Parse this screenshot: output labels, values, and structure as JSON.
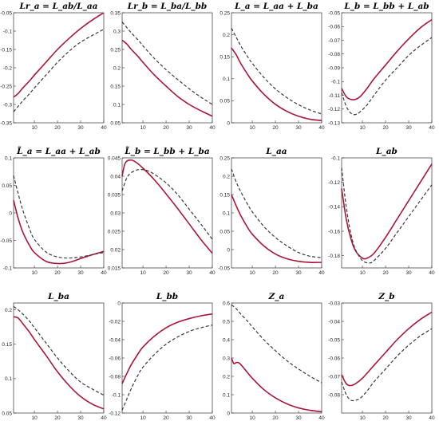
{
  "style": {
    "solid_color": "#a8163a",
    "dashed_color": "#3a3a3a"
  },
  "chart_data": [
    {
      "type": "line",
      "title": "Lr_a = L_ab/L_aa",
      "xlim": [
        1,
        40
      ],
      "ylim": [
        -0.35,
        -0.05
      ],
      "xticks": [
        "10",
        "20",
        "30",
        "40"
      ],
      "xtick_values": [
        10,
        20,
        30,
        40
      ],
      "yticks": [
        "-0.35",
        "-0.3",
        "-0.25",
        "-0.2",
        "-0.15",
        "-0.1",
        "-0.05"
      ],
      "ytick_values": [
        -0.35,
        -0.3,
        -0.25,
        -0.2,
        -0.15,
        -0.1,
        -0.05
      ],
      "series": [
        {
          "style": "solid",
          "x": [
            1,
            3,
            5,
            8,
            10,
            15,
            20,
            25,
            30,
            35,
            40
          ],
          "y": [
            -0.28,
            -0.27,
            -0.255,
            -0.235,
            -0.22,
            -0.185,
            -0.15,
            -0.12,
            -0.093,
            -0.07,
            -0.05
          ]
        },
        {
          "style": "dashed",
          "x": [
            1,
            3,
            5,
            8,
            10,
            15,
            20,
            25,
            30,
            35,
            40
          ],
          "y": [
            -0.32,
            -0.305,
            -0.29,
            -0.27,
            -0.255,
            -0.22,
            -0.185,
            -0.155,
            -0.13,
            -0.112,
            -0.095
          ]
        }
      ]
    },
    {
      "type": "line",
      "title": "Lr_b = L_ba/L_bb",
      "xlim": [
        1,
        40
      ],
      "ylim": [
        0.05,
        0.35
      ],
      "xticks": [
        "10",
        "20",
        "30",
        "40"
      ],
      "xtick_values": [
        10,
        20,
        30,
        40
      ],
      "yticks": [
        "0.05",
        "0.1",
        "0.15",
        "0.2",
        "0.25",
        "0.3",
        "0.35"
      ],
      "ytick_values": [
        0.05,
        0.1,
        0.15,
        0.2,
        0.25,
        0.3,
        0.35
      ],
      "series": [
        {
          "style": "solid",
          "x": [
            1,
            3,
            5,
            8,
            10,
            15,
            20,
            25,
            30,
            35,
            40
          ],
          "y": [
            0.275,
            0.265,
            0.25,
            0.23,
            0.215,
            0.18,
            0.15,
            0.122,
            0.1,
            0.083,
            0.068
          ]
        },
        {
          "style": "dashed",
          "x": [
            1,
            3,
            5,
            8,
            10,
            15,
            20,
            25,
            30,
            35,
            40
          ],
          "y": [
            0.325,
            0.31,
            0.295,
            0.275,
            0.26,
            0.225,
            0.195,
            0.168,
            0.143,
            0.12,
            0.1
          ]
        }
      ]
    },
    {
      "type": "line",
      "title": "L_a = L_aa + L_ba",
      "xlim": [
        1,
        40
      ],
      "ylim": [
        0,
        0.25
      ],
      "xticks": [
        "10",
        "20",
        "30",
        "40"
      ],
      "xtick_values": [
        10,
        20,
        30,
        40
      ],
      "yticks": [
        "0",
        "0.05",
        "0.1",
        "0.15",
        "0.2",
        "0.25"
      ],
      "ytick_values": [
        0,
        0.05,
        0.1,
        0.15,
        0.2,
        0.25
      ],
      "series": [
        {
          "style": "solid",
          "x": [
            1,
            3,
            5,
            8,
            10,
            15,
            20,
            25,
            30,
            35,
            40
          ],
          "y": [
            0.17,
            0.155,
            0.135,
            0.11,
            0.095,
            0.065,
            0.042,
            0.026,
            0.015,
            0.008,
            0.005
          ]
        },
        {
          "style": "dashed",
          "x": [
            1,
            3,
            5,
            8,
            10,
            15,
            20,
            25,
            30,
            35,
            40
          ],
          "y": [
            0.215,
            0.195,
            0.175,
            0.15,
            0.135,
            0.103,
            0.077,
            0.057,
            0.041,
            0.029,
            0.02
          ]
        }
      ]
    },
    {
      "type": "line",
      "title": "L_b = L_bb + L_ab",
      "xlim": [
        1,
        40
      ],
      "ylim": [
        -0.13,
        -0.05
      ],
      "xticks": [
        "10",
        "20",
        "30",
        "40"
      ],
      "xtick_values": [
        10,
        20,
        30,
        40
      ],
      "yticks": [
        "-0.13",
        "-0.12",
        "-0.11",
        "-0.1",
        "-0.09",
        "-0.08",
        "-0.07",
        "-0.06",
        "-0.05"
      ],
      "ytick_values": [
        -0.13,
        -0.12,
        -0.11,
        -0.1,
        -0.09,
        -0.08,
        -0.07,
        -0.06,
        -0.05
      ],
      "series": [
        {
          "style": "solid",
          "x": [
            1,
            3,
            5,
            7,
            9,
            12,
            15,
            20,
            25,
            30,
            35,
            40
          ],
          "y": [
            -0.105,
            -0.111,
            -0.113,
            -0.113,
            -0.111,
            -0.105,
            -0.098,
            -0.088,
            -0.078,
            -0.069,
            -0.061,
            -0.055
          ]
        },
        {
          "style": "dashed",
          "x": [
            1,
            3,
            5,
            7,
            9,
            12,
            15,
            20,
            25,
            30,
            35,
            40
          ],
          "y": [
            -0.108,
            -0.118,
            -0.123,
            -0.124,
            -0.122,
            -0.117,
            -0.11,
            -0.099,
            -0.09,
            -0.081,
            -0.074,
            -0.068
          ]
        }
      ]
    },
    {
      "type": "line",
      "title": "L̃_a = L_aa + L_ab",
      "xlim": [
        1,
        40
      ],
      "ylim": [
        -0.1,
        0.1
      ],
      "xticks": [
        "10",
        "20",
        "30",
        "40"
      ],
      "xtick_values": [
        10,
        20,
        30,
        40
      ],
      "yticks": [
        "-0.1",
        "-0.05",
        "0",
        "0.05",
        "0.1"
      ],
      "ytick_values": [
        -0.1,
        -0.05,
        0,
        0.05,
        0.1
      ],
      "series": [
        {
          "style": "solid",
          "x": [
            1,
            3,
            5,
            8,
            10,
            15,
            20,
            25,
            30,
            35,
            40
          ],
          "y": [
            0.023,
            -0.01,
            -0.035,
            -0.06,
            -0.072,
            -0.088,
            -0.092,
            -0.09,
            -0.083,
            -0.076,
            -0.07
          ]
        },
        {
          "style": "dashed",
          "x": [
            1,
            3,
            5,
            8,
            10,
            15,
            20,
            25,
            30,
            35,
            40
          ],
          "y": [
            0.068,
            0.035,
            0.005,
            -0.03,
            -0.048,
            -0.071,
            -0.08,
            -0.082,
            -0.08,
            -0.076,
            -0.072
          ]
        }
      ]
    },
    {
      "type": "line",
      "title": "L̃_b = L_bb + L_ba",
      "xlim": [
        1,
        40
      ],
      "ylim": [
        0.015,
        0.045
      ],
      "xticks": [
        "10",
        "20",
        "30",
        "40"
      ],
      "xtick_values": [
        10,
        20,
        30,
        40
      ],
      "yticks": [
        "0.015",
        "0.02",
        "0.025",
        "0.03",
        "0.035",
        "0.04",
        "0.045"
      ],
      "ytick_values": [
        0.015,
        0.02,
        0.025,
        0.03,
        0.035,
        0.04,
        0.045
      ],
      "series": [
        {
          "style": "solid",
          "x": [
            1,
            2,
            3,
            5,
            7,
            10,
            15,
            20,
            25,
            30,
            35,
            40
          ],
          "y": [
            0.04,
            0.043,
            0.0441,
            0.0444,
            0.0438,
            0.0422,
            0.039,
            0.0352,
            0.0312,
            0.027,
            0.0228,
            0.019
          ]
        },
        {
          "style": "dashed",
          "x": [
            1,
            3,
            5,
            8,
            10,
            12,
            15,
            20,
            25,
            30,
            35,
            40
          ],
          "y": [
            0.036,
            0.0395,
            0.041,
            0.0418,
            0.0418,
            0.0415,
            0.0405,
            0.0382,
            0.035,
            0.031,
            0.027,
            0.0228
          ]
        }
      ]
    },
    {
      "type": "line",
      "title": "L_aa",
      "xlim": [
        1,
        40
      ],
      "ylim": [
        -0.05,
        0.25
      ],
      "xticks": [
        "10",
        "20",
        "30",
        "40"
      ],
      "xtick_values": [
        10,
        20,
        30,
        40
      ],
      "yticks": [
        "-0.05",
        "0",
        "0.05",
        "0.1",
        "0.15",
        "0.2",
        "0.25"
      ],
      "ytick_values": [
        -0.05,
        0,
        0.05,
        0.1,
        0.15,
        0.2,
        0.25
      ],
      "series": [
        {
          "style": "solid",
          "x": [
            1,
            3,
            5,
            8,
            10,
            15,
            20,
            25,
            30,
            35,
            40
          ],
          "y": [
            0.15,
            0.12,
            0.093,
            0.06,
            0.042,
            0.01,
            -0.012,
            -0.025,
            -0.032,
            -0.035,
            -0.035
          ]
        },
        {
          "style": "dashed",
          "x": [
            1,
            3,
            5,
            8,
            10,
            15,
            20,
            25,
            30,
            35,
            40
          ],
          "y": [
            0.22,
            0.185,
            0.158,
            0.123,
            0.103,
            0.063,
            0.033,
            0.01,
            -0.008,
            -0.018,
            -0.022
          ]
        }
      ]
    },
    {
      "type": "line",
      "title": "L_ab",
      "xlim": [
        1,
        40
      ],
      "ylim": [
        -0.19,
        -0.1
      ],
      "xticks": [
        "10",
        "20",
        "30",
        "40"
      ],
      "xtick_values": [
        10,
        20,
        30,
        40
      ],
      "yticks": [
        "-0.18",
        "-0.16",
        "-0.14",
        "-0.12",
        "-0.1"
      ],
      "ytick_values": [
        -0.18,
        -0.16,
        -0.14,
        -0.12,
        -0.1
      ],
      "series": [
        {
          "style": "solid",
          "x": [
            1,
            3,
            5,
            7,
            10,
            12,
            15,
            20,
            25,
            30,
            35,
            40
          ],
          "y": [
            -0.125,
            -0.15,
            -0.166,
            -0.176,
            -0.182,
            -0.182,
            -0.178,
            -0.165,
            -0.15,
            -0.135,
            -0.12,
            -0.105
          ]
        },
        {
          "style": "dashed",
          "x": [
            1,
            3,
            5,
            7,
            10,
            13,
            15,
            20,
            25,
            30,
            35,
            40
          ],
          "y": [
            -0.108,
            -0.14,
            -0.162,
            -0.175,
            -0.184,
            -0.186,
            -0.184,
            -0.174,
            -0.161,
            -0.148,
            -0.135,
            -0.122
          ]
        }
      ]
    },
    {
      "type": "line",
      "title": "L_ba",
      "xlim": [
        1,
        40
      ],
      "ylim": [
        0.05,
        0.21
      ],
      "xticks": [
        "10",
        "20",
        "30",
        "40"
      ],
      "xtick_values": [
        10,
        20,
        30,
        40
      ],
      "yticks": [
        "0.05",
        "0.1",
        "0.15",
        "0.2"
      ],
      "ytick_values": [
        0.05,
        0.1,
        0.15,
        0.2
      ],
      "series": [
        {
          "style": "solid",
          "x": [
            1,
            3,
            5,
            8,
            10,
            15,
            20,
            25,
            30,
            35,
            40
          ],
          "y": [
            0.19,
            0.188,
            0.18,
            0.167,
            0.157,
            0.134,
            0.11,
            0.09,
            0.074,
            0.063,
            0.056
          ]
        },
        {
          "style": "dashed",
          "x": [
            1,
            3,
            5,
            8,
            10,
            15,
            20,
            25,
            30,
            35,
            40
          ],
          "y": [
            0.205,
            0.2,
            0.194,
            0.183,
            0.174,
            0.152,
            0.13,
            0.111,
            0.095,
            0.085,
            0.076
          ]
        }
      ]
    },
    {
      "type": "line",
      "title": "L_bb",
      "xlim": [
        1,
        40
      ],
      "ylim": [
        -0.12,
        0
      ],
      "xticks": [
        "10",
        "20",
        "30",
        "40"
      ],
      "xtick_values": [
        10,
        20,
        30,
        40
      ],
      "yticks": [
        "-0.12",
        "-0.1",
        "-0.08",
        "-0.06",
        "-0.04",
        "-0.02",
        "0"
      ],
      "ytick_values": [
        -0.12,
        -0.1,
        -0.08,
        -0.06,
        -0.04,
        -0.02,
        0
      ],
      "series": [
        {
          "style": "solid",
          "x": [
            1,
            3,
            5,
            8,
            10,
            15,
            20,
            25,
            30,
            35,
            40
          ],
          "y": [
            -0.088,
            -0.077,
            -0.067,
            -0.055,
            -0.048,
            -0.036,
            -0.027,
            -0.021,
            -0.017,
            -0.014,
            -0.012
          ]
        },
        {
          "style": "dashed",
          "x": [
            1,
            3,
            5,
            8,
            10,
            15,
            20,
            25,
            30,
            35,
            40
          ],
          "y": [
            -0.117,
            -0.105,
            -0.093,
            -0.078,
            -0.07,
            -0.056,
            -0.045,
            -0.037,
            -0.031,
            -0.027,
            -0.024
          ]
        }
      ]
    },
    {
      "type": "line",
      "title": "Z_a",
      "xlim": [
        1,
        40
      ],
      "ylim": [
        0,
        0.6
      ],
      "xticks": [
        "10",
        "20",
        "30",
        "40"
      ],
      "xtick_values": [
        10,
        20,
        30,
        40
      ],
      "yticks": [
        "0",
        "0.1",
        "0.2",
        "0.3",
        "0.4",
        "0.5",
        "0.6"
      ],
      "ytick_values": [
        0,
        0.1,
        0.2,
        0.3,
        0.4,
        0.5,
        0.6
      ],
      "series": [
        {
          "style": "solid",
          "x": [
            1,
            2,
            3,
            4,
            5,
            7,
            10,
            15,
            20,
            25,
            30,
            35,
            40
          ],
          "y": [
            0.3,
            0.27,
            0.275,
            0.275,
            0.265,
            0.235,
            0.19,
            0.128,
            0.083,
            0.05,
            0.028,
            0.015,
            0.007
          ]
        },
        {
          "style": "dashed",
          "x": [
            1,
            3,
            5,
            8,
            10,
            15,
            20,
            25,
            30,
            35,
            40
          ],
          "y": [
            0.59,
            0.57,
            0.54,
            0.5,
            0.47,
            0.4,
            0.34,
            0.285,
            0.24,
            0.2,
            0.165
          ]
        }
      ]
    },
    {
      "type": "line",
      "title": "Z_b",
      "xlim": [
        1,
        40
      ],
      "ylim": [
        -0.09,
        -0.03
      ],
      "xticks": [
        "10",
        "20",
        "30",
        "40"
      ],
      "xtick_values": [
        10,
        20,
        30,
        40
      ],
      "yticks": [
        "-0.08",
        "-0.07",
        "-0.06",
        "-0.05",
        "-0.04",
        "-0.03"
      ],
      "ytick_values": [
        -0.08,
        -0.07,
        -0.06,
        -0.05,
        -0.04,
        -0.03
      ],
      "series": [
        {
          "style": "solid",
          "x": [
            1,
            3,
            5,
            7,
            10,
            15,
            20,
            25,
            30,
            35,
            40
          ],
          "y": [
            -0.069,
            -0.074,
            -0.075,
            -0.074,
            -0.071,
            -0.064,
            -0.057,
            -0.05,
            -0.044,
            -0.039,
            -0.035
          ]
        },
        {
          "style": "dashed",
          "x": [
            1,
            3,
            5,
            7,
            9,
            12,
            15,
            20,
            25,
            30,
            35,
            40
          ],
          "y": [
            -0.073,
            -0.08,
            -0.083,
            -0.083,
            -0.082,
            -0.078,
            -0.073,
            -0.066,
            -0.059,
            -0.053,
            -0.048,
            -0.044
          ]
        }
      ]
    }
  ]
}
